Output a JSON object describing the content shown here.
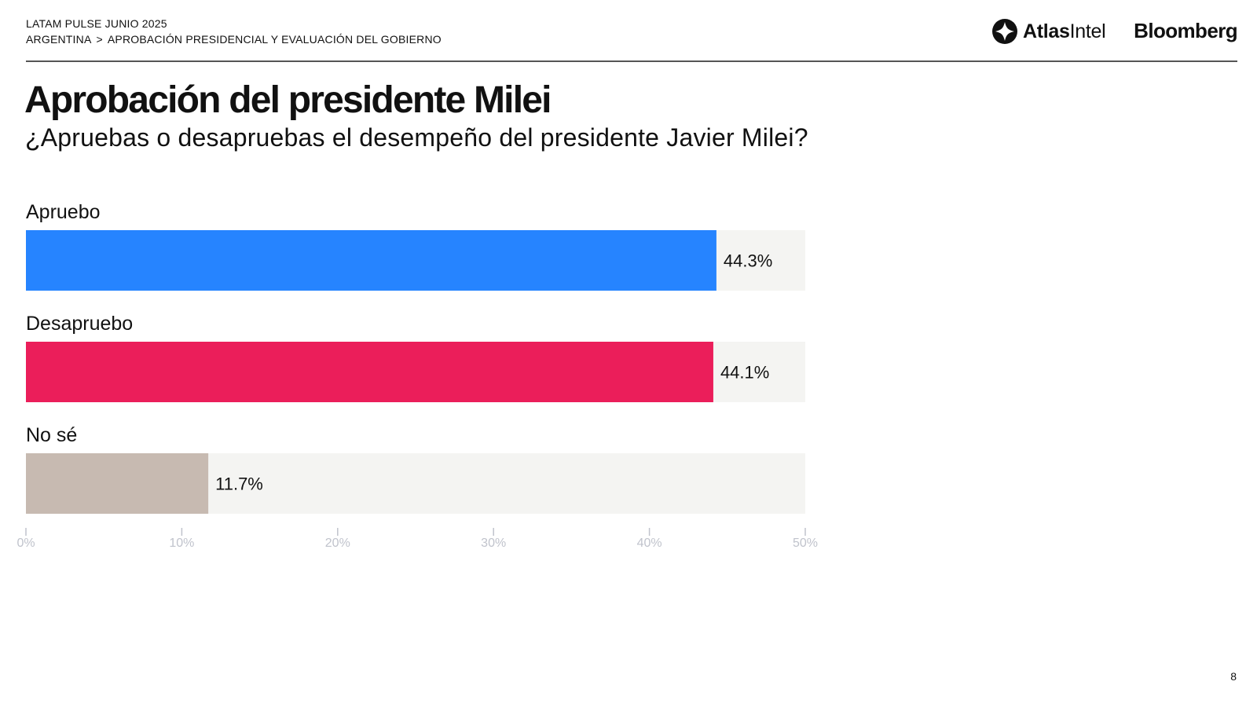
{
  "header": {
    "report": "LATAM PULSE JUNIO 2025",
    "breadcrumb": {
      "country": "ARGENTINA",
      "separator": ">",
      "section": "APROBACIÓN PRESIDENCIAL Y EVALUACIÓN DEL GOBIERNO"
    },
    "logos": {
      "atlas_bold": "Atlas",
      "atlas_regular": "Intel",
      "atlas_icon": "atlasintel-logo-icon",
      "bloomberg": "Bloomberg"
    }
  },
  "title": "Aprobación del presidente Milei",
  "subtitle": "¿Apruebas o desapruebas el desempeño del presidente Javier Milei?",
  "page_number": "8",
  "colors": {
    "approve": "#2684FF",
    "disapprove": "#EB1E5A",
    "unsure": "#C7BAB1",
    "track": "#F4F4F2",
    "axis": "#C0C3CC"
  },
  "chart_data": {
    "type": "bar",
    "orientation": "horizontal",
    "title": "Aprobación del presidente Milei",
    "subtitle": "¿Apruebas o desapruebas el desempeño del presidente Javier Milei?",
    "categories": [
      "Apruebo",
      "Desapruebo",
      "No sé"
    ],
    "values": [
      44.3,
      44.1,
      11.7
    ],
    "value_labels": [
      "44.3%",
      "44.1%",
      "11.7%"
    ],
    "xlim": [
      0,
      50
    ],
    "x_ticks": [
      0,
      10,
      20,
      30,
      40,
      50
    ],
    "x_tick_labels": [
      "0%",
      "10%",
      "20%",
      "30%",
      "40%",
      "50%"
    ],
    "xlabel": "",
    "ylabel": "",
    "grid": false,
    "legend": "none"
  }
}
